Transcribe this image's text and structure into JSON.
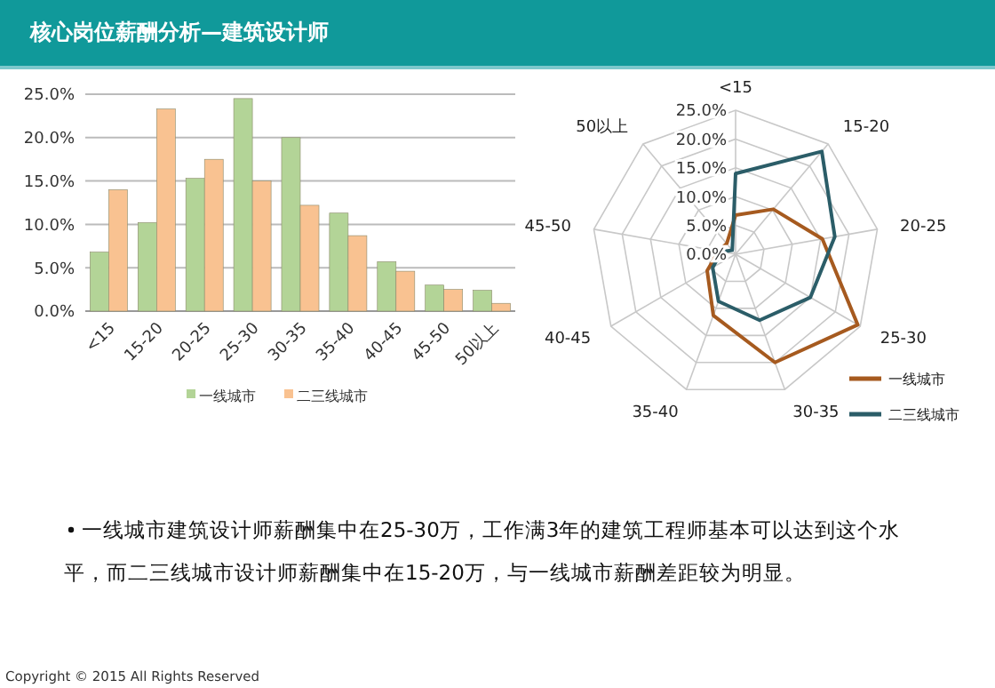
{
  "chart_data": [
    {
      "type": "bar",
      "title": "核心岗位薪酬分析—建筑设计师",
      "categories": [
        "<15",
        "15-20",
        "20-25",
        "25-30",
        "30-35",
        "35-40",
        "40-45",
        "45-50",
        "50以上"
      ],
      "series": [
        {
          "name": "一线城市",
          "color": "#b3d497",
          "values": [
            6.8,
            10.2,
            15.3,
            24.5,
            20.0,
            11.3,
            5.7,
            3.0,
            2.4
          ]
        },
        {
          "name": "二三线城市",
          "color": "#f9c291",
          "values": [
            14.0,
            23.3,
            17.5,
            15.0,
            12.2,
            8.7,
            4.6,
            2.5,
            0.9
          ]
        }
      ],
      "ylim": [
        0,
        25
      ],
      "yticks": [
        {
          "value": 0,
          "label": "0.0%"
        },
        {
          "value": 5,
          "label": "5.0%"
        },
        {
          "value": 10,
          "label": "10.0%"
        },
        {
          "value": 15,
          "label": "15.0%"
        },
        {
          "value": 20,
          "label": "20.0%"
        },
        {
          "value": 25,
          "label": "25.0%"
        }
      ],
      "grid": "y",
      "legend": "bottom",
      "annotations": [
        "一线城市建筑设计师薪酬集中在25-30万，工作满3年的建筑工程师基本可以达到这个水平，而二三线城市设计师薪酬集中在15-20万，与一线城市薪酬差距较为明显。",
        "Copyright © 2015  All Rights Reserved"
      ]
    },
    {
      "type": "radar",
      "categories": [
        "<15",
        "15-20",
        "20-25",
        "25-30",
        "30-35",
        "35-40",
        "40-45",
        "45-50",
        "50以上"
      ],
      "series": [
        {
          "name": "一线城市",
          "color": "#a65a1f",
          "values": [
            6.8,
            10.2,
            15.3,
            24.5,
            20.0,
            11.3,
            5.7,
            3.0,
            2.4
          ]
        },
        {
          "name": "二三线城市",
          "color": "#2b5d68",
          "values": [
            14.0,
            23.3,
            17.5,
            15.0,
            12.2,
            8.7,
            4.6,
            2.5,
            0.9
          ]
        }
      ],
      "ylim": [
        0,
        25
      ],
      "yticks": [
        {
          "value": 0,
          "label": "0.0%"
        },
        {
          "value": 5,
          "label": "5.0%"
        },
        {
          "value": 10,
          "label": "10.0%"
        },
        {
          "value": 15,
          "label": "15.0%"
        },
        {
          "value": 20,
          "label": "20.0%"
        },
        {
          "value": 25,
          "label": "25.0%"
        }
      ],
      "grid": true,
      "legend": "bottom right"
    }
  ]
}
